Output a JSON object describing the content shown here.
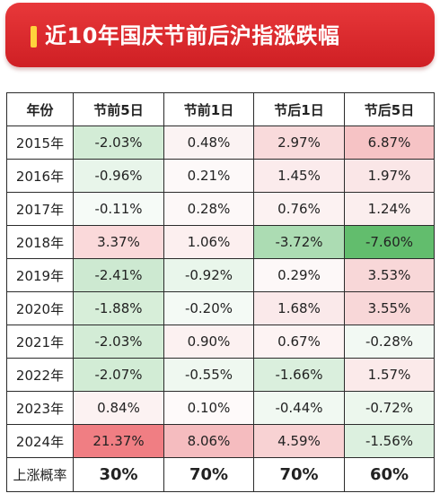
{
  "header": {
    "title": "近10年国庆节前后沪指涨跌幅"
  },
  "table": {
    "columns": [
      "年份",
      "节前5日",
      "节前1日",
      "节后1日",
      "节后5日"
    ],
    "rows": [
      {
        "year": "2015年",
        "cells": [
          {
            "value": "-2.03%",
            "bg": "#d3ecd6"
          },
          {
            "value": "0.48%",
            "bg": "#fbf3f3"
          },
          {
            "value": "2.97%",
            "bg": "#f9dadb"
          },
          {
            "value": "6.87%",
            "bg": "#f6c3c5"
          }
        ]
      },
      {
        "year": "2016年",
        "cells": [
          {
            "value": "-0.96%",
            "bg": "#e8f5ea"
          },
          {
            "value": "0.21%",
            "bg": "#fdf9f9"
          },
          {
            "value": "1.45%",
            "bg": "#fbebec"
          },
          {
            "value": "1.97%",
            "bg": "#fae6e7"
          }
        ]
      },
      {
        "year": "2017年",
        "cells": [
          {
            "value": "-0.11%",
            "bg": "#f6fbf7"
          },
          {
            "value": "0.28%",
            "bg": "#fdf8f8"
          },
          {
            "value": "0.76%",
            "bg": "#fcf2f2"
          },
          {
            "value": "1.24%",
            "bg": "#fbeeee"
          }
        ]
      },
      {
        "year": "2018年",
        "cells": [
          {
            "value": "3.37%",
            "bg": "#fad9da"
          },
          {
            "value": "1.06%",
            "bg": "#fcefef"
          },
          {
            "value": "-3.72%",
            "bg": "#acdcb3"
          },
          {
            "value": "-7.60%",
            "bg": "#62bd6d"
          }
        ]
      },
      {
        "year": "2019年",
        "cells": [
          {
            "value": "-2.41%",
            "bg": "#cde9d1"
          },
          {
            "value": "-0.92%",
            "bg": "#e9f6eb"
          },
          {
            "value": "0.29%",
            "bg": "#fdf8f8"
          },
          {
            "value": "3.53%",
            "bg": "#f8d7d8"
          }
        ]
      },
      {
        "year": "2020年",
        "cells": [
          {
            "value": "-1.88%",
            "bg": "#d7eed9"
          },
          {
            "value": "-0.20%",
            "bg": "#f4faf5"
          },
          {
            "value": "1.68%",
            "bg": "#fae9ea"
          },
          {
            "value": "3.55%",
            "bg": "#f8d7d8"
          }
        ]
      },
      {
        "year": "2021年",
        "cells": [
          {
            "value": "-2.03%",
            "bg": "#d3ecd6"
          },
          {
            "value": "0.90%",
            "bg": "#fcf1f1"
          },
          {
            "value": "0.67%",
            "bg": "#fdf3f3"
          },
          {
            "value": "-0.28%",
            "bg": "#f2f9f3"
          }
        ]
      },
      {
        "year": "2022年",
        "cells": [
          {
            "value": "-2.07%",
            "bg": "#d2ecd5"
          },
          {
            "value": "-0.55%",
            "bg": "#eff8f0"
          },
          {
            "value": "-1.66%",
            "bg": "#daefdd"
          },
          {
            "value": "1.57%",
            "bg": "#fbeaea"
          }
        ]
      },
      {
        "year": "2023年",
        "cells": [
          {
            "value": "0.84%",
            "bg": "#fcf2f2"
          },
          {
            "value": "0.10%",
            "bg": "#fefafa"
          },
          {
            "value": "-0.44%",
            "bg": "#f1f9f2"
          },
          {
            "value": "-0.72%",
            "bg": "#ecf7ed"
          }
        ]
      },
      {
        "year": "2024年",
        "cells": [
          {
            "value": "21.37%",
            "bg": "#f07e83"
          },
          {
            "value": "8.06%",
            "bg": "#f5bcbf"
          },
          {
            "value": "4.59%",
            "bg": "#f8d2d3"
          },
          {
            "value": "-1.56%",
            "bg": "#dcf0df"
          }
        ]
      }
    ],
    "summary": {
      "label": "上涨概率",
      "values": [
        "30%",
        "70%",
        "70%",
        "60%"
      ]
    }
  }
}
